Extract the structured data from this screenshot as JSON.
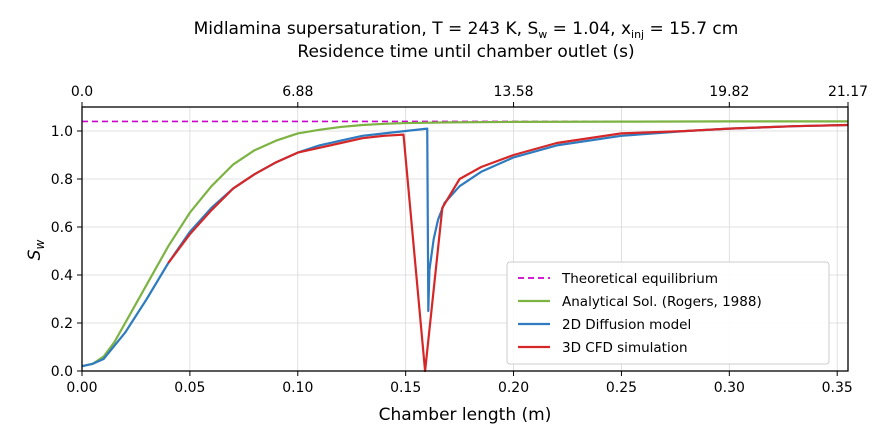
{
  "chart_data": {
    "type": "line",
    "title_line1": "Midlamina supersaturation, T = 243 K, S",
    "title_sub_w": "w",
    "title_mid": " = 1.04, x",
    "title_sub_inj": "inj",
    "title_end": " = 15.7 cm",
    "top_axis_label": "Residence time until chamber outlet (s)",
    "xlabel": "Chamber length (m)",
    "ylabel_main": "S",
    "ylabel_sub": "w",
    "xlim": [
      0.0,
      0.355
    ],
    "ylim": [
      0.0,
      1.1
    ],
    "grid": true,
    "legend_position": "lower-right",
    "x_ticks": [
      0.0,
      0.05,
      0.1,
      0.15,
      0.2,
      0.25,
      0.3,
      0.35
    ],
    "x_tick_labels": [
      "0.00",
      "0.05",
      "0.10",
      "0.15",
      "0.20",
      "0.25",
      "0.30",
      "0.35"
    ],
    "y_ticks": [
      0.0,
      0.2,
      0.4,
      0.6,
      0.8,
      1.0
    ],
    "y_tick_labels": [
      "0.0",
      "0.2",
      "0.4",
      "0.6",
      "0.8",
      "1.0"
    ],
    "top_ticks": [
      0.0,
      0.1,
      0.2,
      0.3,
      0.355
    ],
    "top_tick_labels": [
      "0.0",
      "6.88",
      "13.58",
      "19.82",
      "21.17"
    ],
    "series": [
      {
        "name": "Theoretical equilibrium",
        "color": "#cc00cc",
        "style": "dashed",
        "x": [
          0.0,
          0.355
        ],
        "y": [
          1.04,
          1.04
        ]
      },
      {
        "name": "Analytical Sol. (Rogers, 1988)",
        "color": "#7cb342",
        "style": "solid",
        "x": [
          0.0,
          0.005,
          0.01,
          0.015,
          0.02,
          0.03,
          0.04,
          0.05,
          0.06,
          0.07,
          0.08,
          0.09,
          0.1,
          0.11,
          0.12,
          0.13,
          0.14,
          0.15,
          0.17,
          0.2,
          0.25,
          0.3,
          0.355
        ],
        "y": [
          0.02,
          0.03,
          0.06,
          0.12,
          0.2,
          0.36,
          0.52,
          0.66,
          0.77,
          0.86,
          0.92,
          0.96,
          0.99,
          1.005,
          1.017,
          1.025,
          1.03,
          1.033,
          1.036,
          1.038,
          1.039,
          1.04,
          1.04
        ]
      },
      {
        "name": "2D Diffusion model",
        "color": "#2e7bbf",
        "style": "solid",
        "x": [
          0.0,
          0.005,
          0.01,
          0.02,
          0.03,
          0.04,
          0.05,
          0.06,
          0.07,
          0.08,
          0.09,
          0.1,
          0.11,
          0.12,
          0.13,
          0.14,
          0.15,
          0.16,
          0.1605,
          0.161,
          0.163,
          0.165,
          0.168,
          0.175,
          0.185,
          0.2,
          0.22,
          0.25,
          0.28,
          0.3,
          0.33,
          0.355
        ],
        "y": [
          0.02,
          0.03,
          0.05,
          0.16,
          0.3,
          0.45,
          0.58,
          0.68,
          0.76,
          0.82,
          0.87,
          0.91,
          0.94,
          0.96,
          0.98,
          0.99,
          1.0,
          1.01,
          0.25,
          0.42,
          0.55,
          0.63,
          0.7,
          0.77,
          0.83,
          0.89,
          0.94,
          0.98,
          1.0,
          1.01,
          1.02,
          1.025
        ]
      },
      {
        "name": "3D CFD simulation",
        "color": "#d62728",
        "style": "solid",
        "x": [
          0.04,
          0.05,
          0.06,
          0.07,
          0.08,
          0.09,
          0.1,
          0.11,
          0.12,
          0.13,
          0.14,
          0.149,
          0.159,
          0.167,
          0.175,
          0.185,
          0.2,
          0.22,
          0.25,
          0.28,
          0.3,
          0.33,
          0.355
        ],
        "y": [
          0.45,
          0.57,
          0.67,
          0.76,
          0.82,
          0.87,
          0.91,
          0.93,
          0.95,
          0.97,
          0.98,
          0.985,
          0.0,
          0.68,
          0.8,
          0.85,
          0.9,
          0.95,
          0.99,
          1.0,
          1.01,
          1.02,
          1.025
        ]
      }
    ]
  }
}
